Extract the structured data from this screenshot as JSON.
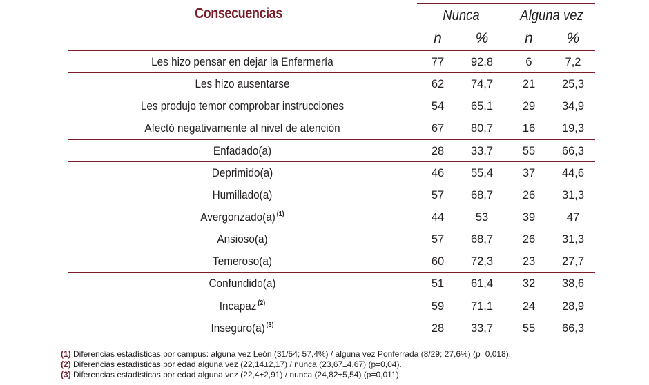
{
  "table": {
    "title": "Consecuencias",
    "group_headers": [
      "Nunca",
      "Alguna vez"
    ],
    "sub_headers": [
      "n",
      "%",
      "n",
      "%"
    ],
    "rows": [
      {
        "label": "Les hizo pensar en dejar la Enfermería",
        "mark": "",
        "n_nunca": "77",
        "pct_nunca": "92,8",
        "n_alguna": "6",
        "pct_alguna": "7,2"
      },
      {
        "label": "Les hizo ausentarse",
        "mark": "",
        "n_nunca": "62",
        "pct_nunca": "74,7",
        "n_alguna": "21",
        "pct_alguna": "25,3"
      },
      {
        "label": "Les produjo temor comprobar instrucciones",
        "mark": "",
        "n_nunca": "54",
        "pct_nunca": "65,1",
        "n_alguna": "29",
        "pct_alguna": "34,9"
      },
      {
        "label": "Afectó negativamente al nivel de atención",
        "mark": "",
        "n_nunca": "67",
        "pct_nunca": "80,7",
        "n_alguna": "16",
        "pct_alguna": "19,3"
      },
      {
        "label": "Enfadado(a)",
        "mark": "",
        "n_nunca": "28",
        "pct_nunca": "33,7",
        "n_alguna": "55",
        "pct_alguna": "66,3"
      },
      {
        "label": "Deprimido(a)",
        "mark": "",
        "n_nunca": "46",
        "pct_nunca": "55,4",
        "n_alguna": "37",
        "pct_alguna": "44,6"
      },
      {
        "label": "Humillado(a)",
        "mark": "",
        "n_nunca": "57",
        "pct_nunca": "68,7",
        "n_alguna": "26",
        "pct_alguna": "31,3"
      },
      {
        "label": "Avergonzado(a)",
        "mark": "(1)",
        "n_nunca": "44",
        "pct_nunca": "53",
        "n_alguna": "39",
        "pct_alguna": "47"
      },
      {
        "label": "Ansioso(a)",
        "mark": "",
        "n_nunca": "57",
        "pct_nunca": "68,7",
        "n_alguna": "26",
        "pct_alguna": "31,3"
      },
      {
        "label": "Temeroso(a)",
        "mark": "",
        "n_nunca": "60",
        "pct_nunca": "72,3",
        "n_alguna": "23",
        "pct_alguna": "27,7"
      },
      {
        "label": "Confundido(a)",
        "mark": "",
        "n_nunca": "51",
        "pct_nunca": "61,4",
        "n_alguna": "32",
        "pct_alguna": "38,6"
      },
      {
        "label": "Incapaz",
        "mark": "(2)",
        "n_nunca": "59",
        "pct_nunca": "71,1",
        "n_alguna": "24",
        "pct_alguna": "28,9"
      },
      {
        "label": "Inseguro(a)",
        "mark": "(3)",
        "n_nunca": "28",
        "pct_nunca": "33,7",
        "n_alguna": "55",
        "pct_alguna": "66,3"
      }
    ]
  },
  "footnotes": [
    {
      "mark": "(1)",
      "text": "Diferencias estadísticas por campus: alguna vez León (31/54; 57,4%) / alguna vez Ponferrada (8/29; 27,6%) (p=0,018)."
    },
    {
      "mark": "(2)",
      "text": "Diferencias estadísticas por edad alguna vez (22,14±2,17) / nunca (23,67±4,67) (p=0,04)."
    },
    {
      "mark": "(3)",
      "text": "Diferencias estadísticas por edad alguna vez (22,4±2,91) / nunca (24,82±5,54) (p=0,011)."
    }
  ],
  "colors": {
    "accent": "#7a1e2a",
    "text": "#231f20"
  }
}
